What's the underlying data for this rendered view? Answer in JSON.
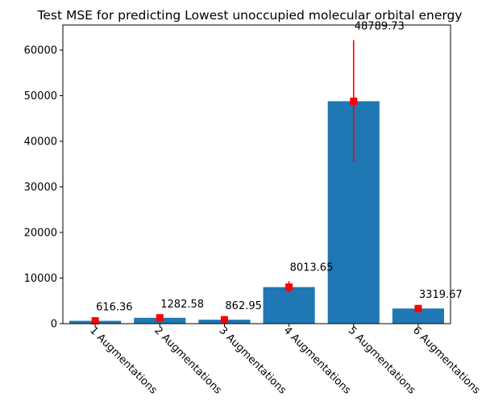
{
  "chart_data": {
    "type": "bar",
    "title": "Test MSE for predicting Lowest unoccupied molecular orbital energy",
    "xlabel": "",
    "ylabel": "",
    "categories": [
      "1 Augmentations",
      "2 Augmentations",
      "3 Augmentations",
      "4 Augmentations",
      "5 Augmentations",
      "6 Augmentations"
    ],
    "values": [
      616.36,
      1282.58,
      862.95,
      8013.65,
      48789.73,
      3319.67
    ],
    "value_labels": [
      "616.36",
      "1282.58",
      "862.95",
      "8013.65",
      "48789.73",
      "3319.67"
    ],
    "error_low": [
      0,
      0,
      0,
      6900,
      35400,
      0
    ],
    "error_high": [
      0,
      0,
      0,
      9300,
      62200,
      0
    ],
    "ylim": [
      0,
      65500
    ],
    "yticks": [
      0,
      10000,
      20000,
      30000,
      40000,
      50000,
      60000
    ],
    "ytick_labels": [
      "0",
      "10000",
      "20000",
      "30000",
      "40000",
      "50000",
      "60000"
    ],
    "grid": false,
    "legend": "none",
    "bar_color": "#1f77b4",
    "marker_color": "#ff0000",
    "error_color": "#ff0000"
  }
}
